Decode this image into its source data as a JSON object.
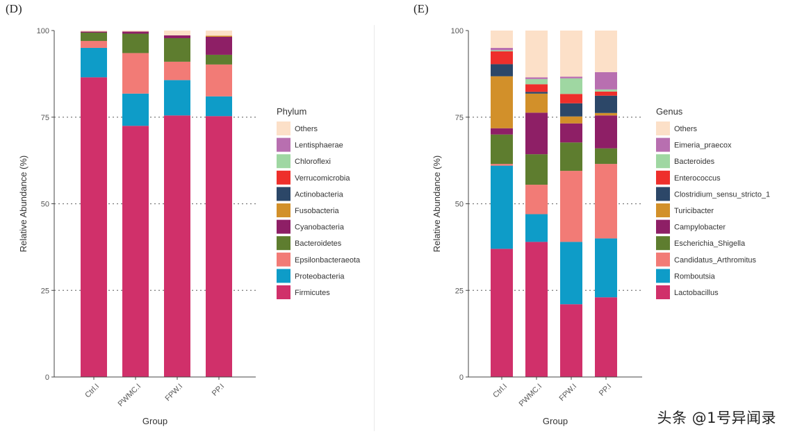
{
  "chart_data": [
    {
      "type": "stacked-bar",
      "panel_label": "(D)",
      "title": "",
      "xlabel": "Group",
      "ylabel": "Relative Abundance (%)",
      "ylim": [
        0,
        100
      ],
      "yticks": [
        "0",
        "25",
        "50",
        "75",
        "100"
      ],
      "categories": [
        "Ctrl.I",
        "PWMC.I",
        "FPW.I",
        "PP.I"
      ],
      "legend_title": "Phylum",
      "series": [
        {
          "name": "Firmicutes",
          "color": "#D0306A",
          "values": [
            86.5,
            72.5,
            75.5,
            75.3
          ]
        },
        {
          "name": "Proteobacteria",
          "color": "#0E9CC8",
          "values": [
            8.5,
            9.3,
            10.2,
            5.7
          ]
        },
        {
          "name": "Epsilonbacteraeota",
          "color": "#F27B76",
          "values": [
            2.0,
            11.7,
            5.3,
            9.2
          ]
        },
        {
          "name": "Bacteroidetes",
          "color": "#5E7D2F",
          "values": [
            2.4,
            5.6,
            6.8,
            2.8
          ]
        },
        {
          "name": "Cyanobacteria",
          "color": "#8E1F66",
          "values": [
            0.3,
            0.6,
            0.8,
            5.2
          ]
        },
        {
          "name": "Fusobacteria",
          "color": "#D2902A",
          "values": [
            0.0,
            0.0,
            0.0,
            0.3
          ]
        },
        {
          "name": "Actinobacteria",
          "color": "#2C4768",
          "values": [
            0.0,
            0.0,
            0.0,
            0.0
          ]
        },
        {
          "name": "Verrucomicrobia",
          "color": "#EE2F2B",
          "values": [
            0.0,
            0.0,
            0.0,
            0.0
          ]
        },
        {
          "name": "Chloroflexi",
          "color": "#9FD7A2",
          "values": [
            0.0,
            0.0,
            0.0,
            0.0
          ]
        },
        {
          "name": "Lentisphaerae",
          "color": "#B86FB0",
          "values": [
            0.0,
            0.0,
            0.0,
            0.0
          ]
        },
        {
          "name": "Others",
          "color": "#FCE0C8",
          "values": [
            0.3,
            0.3,
            1.4,
            1.5
          ]
        }
      ],
      "legend_order": [
        "Others",
        "Lentisphaerae",
        "Chloroflexi",
        "Verrucomicrobia",
        "Actinobacteria",
        "Fusobacteria",
        "Cyanobacteria",
        "Bacteroidetes",
        "Epsilonbacteraeota",
        "Proteobacteria",
        "Firmicutes"
      ],
      "gridlines": [
        25,
        50,
        75
      ]
    },
    {
      "type": "stacked-bar",
      "panel_label": "(E)",
      "title": "",
      "xlabel": "Group",
      "ylabel": "Relative Abundance (%)",
      "ylim": [
        0,
        100
      ],
      "yticks": [
        "0",
        "25",
        "50",
        "75",
        "100"
      ],
      "categories": [
        "Ctrl.I",
        "PWMC.I",
        "FPW.I",
        "PP.I"
      ],
      "legend_title": "Genus",
      "series": [
        {
          "name": "Lactobacillus",
          "color": "#D0306A",
          "values": [
            37.0,
            39.0,
            21.0,
            23.0
          ]
        },
        {
          "name": "Romboutsia",
          "color": "#0E9CC8",
          "values": [
            24.0,
            8.0,
            18.0,
            17.0
          ]
        },
        {
          "name": "Candidatus_Arthromitus",
          "color": "#F27B76",
          "values": [
            0.5,
            8.5,
            20.5,
            21.5
          ]
        },
        {
          "name": "Escherichia_Shigella",
          "color": "#5E7D2F",
          "values": [
            8.5,
            8.8,
            8.2,
            4.5
          ]
        },
        {
          "name": "Campylobacter",
          "color": "#8E1F66",
          "values": [
            1.8,
            12.0,
            5.5,
            9.5
          ]
        },
        {
          "name": "Turicibacter",
          "color": "#D2902A",
          "values": [
            15.0,
            5.5,
            2.0,
            0.7
          ]
        },
        {
          "name": "Clostridium_sensu_stricto_1",
          "color": "#2C4768",
          "values": [
            3.5,
            0.5,
            3.8,
            5.0
          ]
        },
        {
          "name": "Enterococcus",
          "color": "#EE2F2B",
          "values": [
            3.7,
            2.2,
            2.7,
            1.2
          ]
        },
        {
          "name": "Bacteroides",
          "color": "#9FD7A2",
          "values": [
            0.3,
            1.5,
            4.5,
            0.6
          ]
        },
        {
          "name": "Eimeria_praecox",
          "color": "#B86FB0",
          "values": [
            0.7,
            0.5,
            0.5,
            5.0
          ]
        },
        {
          "name": "Others",
          "color": "#FCE0C8",
          "values": [
            5.0,
            13.5,
            13.3,
            12.0
          ]
        }
      ],
      "legend_order": [
        "Others",
        "Eimeria_praecox",
        "Bacteroides",
        "Enterococcus",
        "Clostridium_sensu_stricto_1",
        "Turicibacter",
        "Campylobacter",
        "Escherichia_Shigella",
        "Candidatus_Arthromitus",
        "Romboutsia",
        "Lactobacillus"
      ],
      "gridlines": [
        25,
        50,
        75
      ]
    }
  ],
  "watermark": "头条 @1号异闻录"
}
